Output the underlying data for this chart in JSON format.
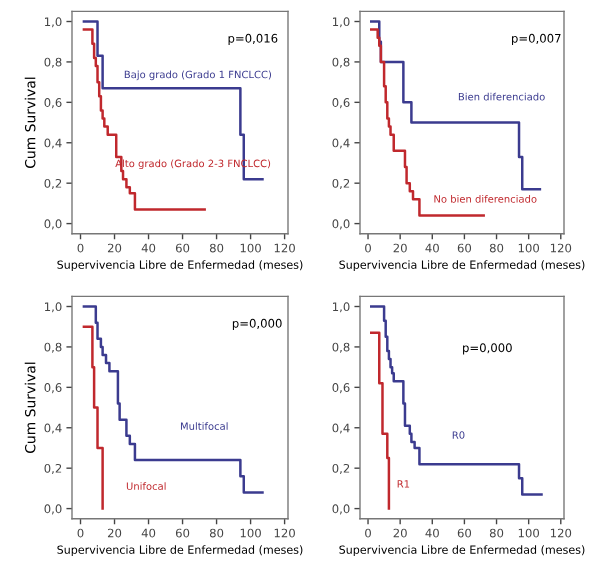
{
  "chart_data": [
    {
      "type": "step",
      "ylabel": "Cum Survival",
      "xlabel": "Supervivencia Libre de Enfermedad (meses)",
      "annotations": [
        "p=0,016"
      ],
      "xlim": [
        -5,
        122
      ],
      "ylim": [
        -0.05,
        1.05
      ],
      "xticks": [
        0,
        20,
        40,
        60,
        80,
        100,
        120
      ],
      "yticks": [
        {
          "value": 0,
          "label": "0,0"
        },
        {
          "value": 0.2,
          "label": "0,2"
        },
        {
          "value": 0.4,
          "label": "0,4"
        },
        {
          "value": 0.6,
          "label": "0,6"
        },
        {
          "value": 0.8,
          "label": "0,8"
        },
        {
          "value": 1,
          "label": "1,0"
        }
      ],
      "grid": false,
      "legend": false,
      "series": [
        {
          "name": "Bajo grado (Grado 1 FNCLCC)",
          "color": "#3b3b8f",
          "x": [
            2,
            10,
            13,
            94,
            96,
            107
          ],
          "values": [
            1.0,
            0.83,
            0.67,
            0.44,
            0.22,
            0.22
          ]
        },
        {
          "name": "Alto grado (Grado 2-3 FNCLCC)",
          "color": "#c0282d",
          "x": [
            2,
            7,
            8,
            9,
            10,
            11,
            12,
            13,
            14,
            16,
            21,
            24,
            25,
            27,
            29,
            32,
            73
          ],
          "values": [
            0.96,
            0.89,
            0.82,
            0.78,
            0.7,
            0.63,
            0.56,
            0.52,
            0.48,
            0.44,
            0.33,
            0.26,
            0.22,
            0.18,
            0.15,
            0.07,
            0.07
          ]
        }
      ]
    },
    {
      "type": "step",
      "xlabel": "Supervivencia Libre de Enfermedad (meses)",
      "annotations": [
        "p=0,007"
      ],
      "xlim": [
        -5,
        122
      ],
      "ylim": [
        -0.05,
        1.05
      ],
      "xticks": [
        0,
        20,
        40,
        60,
        80,
        100,
        120
      ],
      "yticks": [
        {
          "value": 0,
          "label": "0,0"
        },
        {
          "value": 0.2,
          "label": "0,2"
        },
        {
          "value": 0.4,
          "label": "0,4"
        },
        {
          "value": 0.6,
          "label": "0,6"
        },
        {
          "value": 0.8,
          "label": "0,8"
        },
        {
          "value": 1,
          "label": "1,0"
        }
      ],
      "grid": false,
      "legend": false,
      "series": [
        {
          "name": "Bien diferenciado",
          "color": "#3b3b8f",
          "x": [
            2,
            7,
            8,
            22,
            27,
            94,
            96,
            107
          ],
          "values": [
            1.0,
            0.9,
            0.8,
            0.6,
            0.5,
            0.33,
            0.17,
            0.17
          ]
        },
        {
          "name": "No bien diferenciado",
          "color": "#c0282d",
          "x": [
            2,
            6,
            7,
            8,
            10,
            11,
            12,
            13,
            14,
            16,
            23,
            24,
            26,
            28,
            32,
            72
          ],
          "values": [
            0.96,
            0.92,
            0.88,
            0.8,
            0.68,
            0.6,
            0.52,
            0.48,
            0.44,
            0.36,
            0.28,
            0.2,
            0.16,
            0.12,
            0.04,
            0.04
          ]
        }
      ]
    },
    {
      "type": "step",
      "ylabel": "Cum Survival",
      "xlabel": "Supervivencia Libre de Enfermedad (meses)",
      "annotations": [
        "p=0,000"
      ],
      "xlim": [
        -5,
        122
      ],
      "ylim": [
        -0.05,
        1.05
      ],
      "xticks": [
        0,
        20,
        40,
        60,
        80,
        100,
        120
      ],
      "yticks": [
        {
          "value": 0,
          "label": "0,0"
        },
        {
          "value": 0.2,
          "label": "0,2"
        },
        {
          "value": 0.4,
          "label": "0,4"
        },
        {
          "value": 0.6,
          "label": "0,6"
        },
        {
          "value": 0.8,
          "label": "0,8"
        },
        {
          "value": 1,
          "label": "1,0"
        }
      ],
      "grid": false,
      "legend": false,
      "series": [
        {
          "name": "Multifocal",
          "color": "#3b3b8f",
          "x": [
            2,
            9,
            10,
            12,
            13,
            15,
            17,
            22,
            23,
            27,
            29,
            32,
            94,
            96,
            107
          ],
          "values": [
            1.0,
            0.92,
            0.84,
            0.8,
            0.76,
            0.72,
            0.68,
            0.52,
            0.44,
            0.36,
            0.32,
            0.24,
            0.16,
            0.08,
            0.08
          ]
        },
        {
          "name": "Unifocal",
          "color": "#c0282d",
          "x": [
            2,
            7,
            8,
            10,
            13
          ],
          "values": [
            0.9,
            0.7,
            0.5,
            0.3,
            0.0
          ]
        }
      ]
    },
    {
      "type": "step",
      "xlabel": "Supervivencia Libre de Enfermedad (meses)",
      "annotations": [
        "p=0,000"
      ],
      "xlim": [
        -5,
        122
      ],
      "ylim": [
        -0.05,
        1.05
      ],
      "xticks": [
        0,
        20,
        40,
        60,
        80,
        100,
        120
      ],
      "yticks": [
        {
          "value": 0,
          "label": "0,0"
        },
        {
          "value": 0.2,
          "label": "0,2"
        },
        {
          "value": 0.4,
          "label": "0,4"
        },
        {
          "value": 0.6,
          "label": "0,6"
        },
        {
          "value": 0.8,
          "label": "0,8"
        },
        {
          "value": 1,
          "label": "1,0"
        }
      ],
      "grid": false,
      "legend": false,
      "series": [
        {
          "name": "R0",
          "color": "#3b3b8f",
          "x": [
            2,
            10,
            11,
            12,
            13,
            14,
            15,
            16,
            22,
            23,
            26,
            27,
            29,
            32,
            94,
            96,
            108
          ],
          "values": [
            1.0,
            0.93,
            0.85,
            0.78,
            0.74,
            0.7,
            0.67,
            0.63,
            0.52,
            0.41,
            0.37,
            0.33,
            0.3,
            0.22,
            0.15,
            0.07,
            0.07
          ]
        },
        {
          "name": "R1",
          "color": "#c0282d",
          "x": [
            2,
            7,
            9,
            12,
            13
          ],
          "values": [
            0.87,
            0.62,
            0.37,
            0.25,
            0.0
          ]
        }
      ]
    }
  ]
}
